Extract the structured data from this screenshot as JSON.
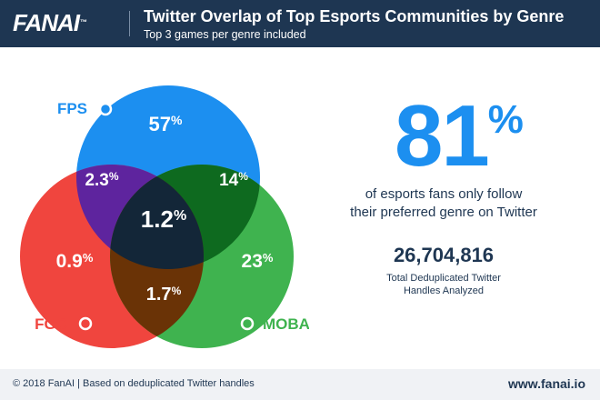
{
  "header": {
    "logo": "FANAI",
    "logo_mark": "™",
    "title": "Twitter Overlap of Top Esports Communities by Genre",
    "subtitle": "Top 3 games per genre included"
  },
  "chart_data": {
    "type": "venn",
    "title": "Twitter Overlap of Top Esports Communities by Genre",
    "subtitle": "Top 3 games per genre included",
    "sets": [
      "FPS",
      "FGC",
      "MOBA"
    ],
    "colors": {
      "FPS": "#1c8ff0",
      "FGC": "#f0453e",
      "MOBA": "#3fb34f"
    },
    "regions": [
      {
        "name": "fps-only",
        "sets": [
          "FPS"
        ],
        "value": "57"
      },
      {
        "name": "fgc-only",
        "sets": [
          "FGC"
        ],
        "value": "0.9"
      },
      {
        "name": "moba-only",
        "sets": [
          "MOBA"
        ],
        "value": "23"
      },
      {
        "name": "fps-fgc",
        "sets": [
          "FPS",
          "FGC"
        ],
        "value": "2.3"
      },
      {
        "name": "fps-moba",
        "sets": [
          "FPS",
          "MOBA"
        ],
        "value": "14"
      },
      {
        "name": "fgc-moba",
        "sets": [
          "FGC",
          "MOBA"
        ],
        "value": "1.7"
      },
      {
        "name": "all-three",
        "sets": [
          "FPS",
          "FGC",
          "MOBA"
        ],
        "value": "1.2"
      }
    ],
    "unit": "%"
  },
  "stat": {
    "value": "81",
    "unit": "%",
    "caption_line1": "of esports fans only follow",
    "caption_line2": "their preferred genre on Twitter"
  },
  "handles": {
    "count": "26,704,816",
    "caption_line1": "Total Deduplicated Twitter",
    "caption_line2": "Handles Analyzed"
  },
  "footer": {
    "left": "© 2018 FanAI | Based on deduplicated Twitter handles",
    "right": "www.fanai.io"
  }
}
